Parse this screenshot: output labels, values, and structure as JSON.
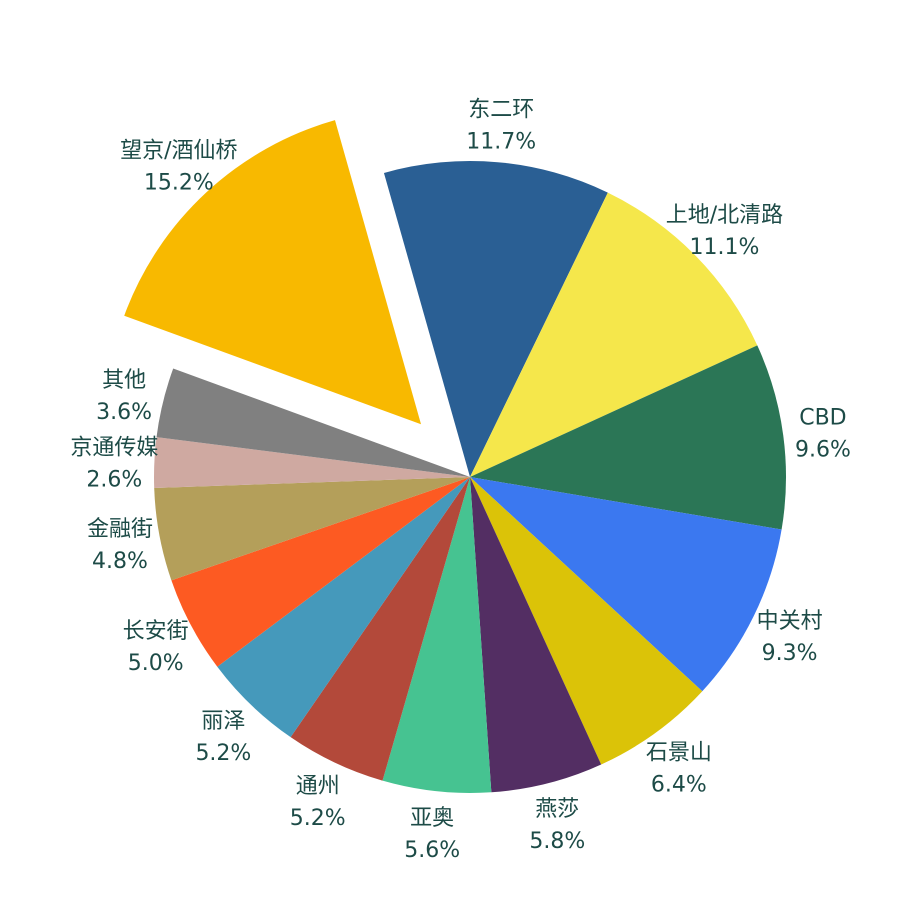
{
  "chart_data": {
    "type": "pie",
    "title": "",
    "direction": "clockwise",
    "exploded": [
      "望京/酒仙桥"
    ],
    "slices": [
      {
        "label": "东二环",
        "value": 11.7,
        "display": "11.7%",
        "color": "#2a5f94"
      },
      {
        "label": "上地/北清路",
        "value": 11.1,
        "display": "11.1%",
        "color": "#f5e74b"
      },
      {
        "label": "CBD",
        "value": 9.6,
        "display": "9.6%",
        "color": "#2b7656"
      },
      {
        "label": "中关村",
        "value": 9.3,
        "display": "9.3%",
        "color": "#3b78f0"
      },
      {
        "label": "石景山",
        "value": 6.4,
        "display": "6.4%",
        "color": "#dbc308"
      },
      {
        "label": "燕莎",
        "value": 5.8,
        "display": "5.8%",
        "color": "#532e63"
      },
      {
        "label": "亚奥",
        "value": 5.6,
        "display": "5.6%",
        "color": "#46c391"
      },
      {
        "label": "通州",
        "value": 5.2,
        "display": "5.2%",
        "color": "#b3493a"
      },
      {
        "label": "丽泽",
        "value": 5.2,
        "display": "5.2%",
        "color": "#4599bb"
      },
      {
        "label": "长安街",
        "value": 5.0,
        "display": "5.0%",
        "color": "#fd5a22"
      },
      {
        "label": "金融街",
        "value": 4.8,
        "display": "4.8%",
        "color": "#b49f5a"
      },
      {
        "label": "京通传媒",
        "value": 2.6,
        "display": "2.6%",
        "color": "#cfa9a1"
      },
      {
        "label": "其他",
        "value": 3.6,
        "display": "3.6%",
        "color": "#808080"
      },
      {
        "label": "望京/酒仙桥",
        "value": 15.2,
        "display": "15.2%",
        "color": "#f8b900"
      }
    ]
  }
}
